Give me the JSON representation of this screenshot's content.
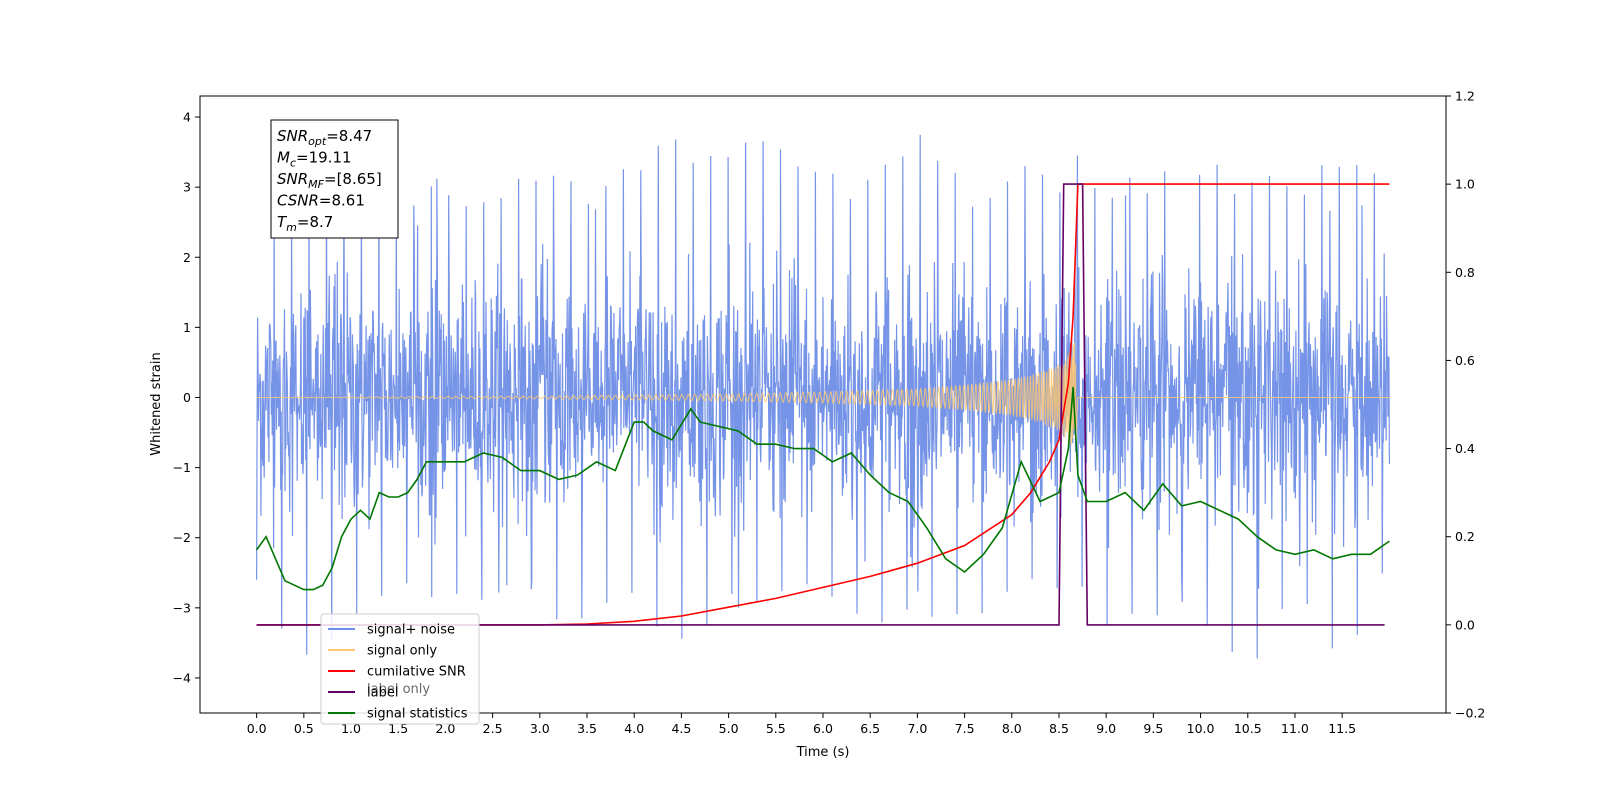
{
  "chart_data": {
    "type": "line",
    "xlabel": "Time (s)",
    "ylabel": "Whitened strain",
    "xlim": [
      -0.6,
      12.6
    ],
    "ylim": [
      -4.5,
      4.3
    ],
    "y2lim": [
      -0.2,
      1.2
    ],
    "xticks": [
      "0.0",
      "0.5",
      "1.0",
      "1.5",
      "2.0",
      "2.5",
      "3.0",
      "3.5",
      "4.0",
      "4.5",
      "5.0",
      "5.5",
      "6.0",
      "6.5",
      "7.0",
      "7.5",
      "8.0",
      "8.5",
      "9.0",
      "9.5",
      "10.0",
      "10.5",
      "11.0",
      "11.5"
    ],
    "yticks": [
      "4",
      "3",
      "2",
      "1",
      "0",
      "−1",
      "−2",
      "−3",
      "−4"
    ],
    "y2ticks": [
      "1.2",
      "1.0",
      "0.8",
      "0.6",
      "0.4",
      "0.2",
      "0.0",
      "−0.2"
    ],
    "annotation": {
      "lines": [
        {
          "sym": "SNR",
          "sub": "opt",
          "value": "=8.47"
        },
        {
          "sym": "M",
          "sub": "c",
          "value": "=19.11"
        },
        {
          "sym": "SNR",
          "sub": "MF",
          "value": "=[8.65]"
        },
        {
          "sym": "CSNR",
          "sub": "",
          "value": "=8.61"
        },
        {
          "sym": "T",
          "sub": "m",
          "value": "=8.7"
        }
      ]
    },
    "legend": {
      "placement": "lower-left",
      "entries": [
        {
          "label": "signal+ noise",
          "color": "#6f8ee6"
        },
        {
          "label": "signal only",
          "color": "#ffc870"
        },
        {
          "label": "cumilative SNR",
          "color": "#ff0000"
        },
        {
          "label": "label",
          "color": "#660066"
        },
        {
          "label": "signal statistics",
          "color": "#007700"
        }
      ],
      "hidden_text": "label only"
    },
    "series": [
      {
        "name": "signal+ noise",
        "axis": "left",
        "color": "#6f8ee6",
        "x_range": [
          0,
          12
        ],
        "envelope": {
          "x": [
            0.0,
            0.5,
            1.0,
            1.5,
            2.0,
            2.5,
            3.0,
            3.5,
            4.0,
            4.5,
            5.0,
            5.5,
            6.0,
            6.5,
            7.0,
            7.5,
            8.0,
            8.5,
            8.6,
            8.7,
            9.0,
            9.5,
            10.0,
            10.5,
            11.0,
            11.5,
            12.0
          ],
          "upper": [
            2.6,
            3.1,
            3.4,
            3.0,
            3.3,
            3.0,
            3.3,
            3.2,
            3.5,
            3.8,
            3.5,
            3.9,
            3.4,
            3.2,
            3.8,
            3.1,
            3.4,
            3.3,
            3.7,
            3.8,
            3.3,
            3.3,
            3.6,
            3.2,
            3.3,
            3.5,
            3.1
          ],
          "lower": [
            -2.6,
            -4.1,
            -3.2,
            -2.9,
            -3.0,
            -2.9,
            -3.1,
            -3.3,
            -3.2,
            -3.9,
            -3.0,
            -3.0,
            -3.1,
            -3.3,
            -3.2,
            -3.2,
            -3.0,
            -3.0,
            -3.4,
            -3.1,
            -3.3,
            -3.1,
            -3.3,
            -4.1,
            -3.0,
            -3.8,
            -2.8
          ]
        }
      },
      {
        "name": "signal only",
        "axis": "left",
        "color": "#ffc870",
        "x_range": [
          0,
          12
        ],
        "envelope": {
          "x": [
            0.0,
            3.0,
            5.0,
            6.0,
            7.0,
            7.5,
            8.0,
            8.3,
            8.5,
            8.6,
            8.67,
            8.7,
            12.0
          ],
          "amplitude": [
            0.0,
            0.02,
            0.05,
            0.08,
            0.12,
            0.18,
            0.26,
            0.36,
            0.48,
            0.62,
            0.8,
            0.0,
            0.0
          ]
        }
      },
      {
        "name": "cumilative SNR",
        "axis": "right",
        "color": "#ff0000",
        "x": [
          0.0,
          3.0,
          3.5,
          4.0,
          4.5,
          5.0,
          5.5,
          6.0,
          6.5,
          7.0,
          7.5,
          8.0,
          8.2,
          8.4,
          8.5,
          8.6,
          8.65,
          8.7,
          12.0
        ],
        "values": [
          0.0,
          0.0,
          0.002,
          0.008,
          0.02,
          0.04,
          0.06,
          0.085,
          0.11,
          0.14,
          0.18,
          0.25,
          0.3,
          0.37,
          0.42,
          0.55,
          0.7,
          1.0,
          1.0
        ]
      },
      {
        "name": "label",
        "axis": "right",
        "color": "#660066",
        "x": [
          0.0,
          8.5,
          8.55,
          8.75,
          8.8,
          11.95
        ],
        "values": [
          0.0,
          0.0,
          1.0,
          1.0,
          0.0,
          0.0
        ]
      },
      {
        "name": "signal statistics",
        "axis": "right",
        "color": "#007700",
        "x": [
          0.0,
          0.1,
          0.2,
          0.3,
          0.4,
          0.5,
          0.6,
          0.7,
          0.8,
          0.9,
          1.0,
          1.1,
          1.2,
          1.3,
          1.4,
          1.5,
          1.6,
          1.7,
          1.8,
          1.9,
          2.0,
          2.2,
          2.4,
          2.6,
          2.8,
          3.0,
          3.2,
          3.4,
          3.6,
          3.8,
          4.0,
          4.1,
          4.2,
          4.4,
          4.6,
          4.7,
          4.9,
          5.1,
          5.3,
          5.5,
          5.7,
          5.9,
          6.1,
          6.3,
          6.5,
          6.7,
          6.9,
          7.1,
          7.3,
          7.5,
          7.7,
          7.9,
          8.1,
          8.3,
          8.5,
          8.6,
          8.65,
          8.7,
          8.8,
          9.0,
          9.2,
          9.4,
          9.6,
          9.8,
          10.0,
          10.2,
          10.4,
          10.6,
          10.8,
          11.0,
          11.2,
          11.4,
          11.6,
          11.8,
          12.0
        ],
        "values": [
          0.17,
          0.2,
          0.15,
          0.1,
          0.09,
          0.08,
          0.08,
          0.09,
          0.13,
          0.2,
          0.24,
          0.26,
          0.24,
          0.3,
          0.29,
          0.29,
          0.3,
          0.33,
          0.37,
          0.37,
          0.37,
          0.37,
          0.39,
          0.38,
          0.35,
          0.35,
          0.33,
          0.34,
          0.37,
          0.35,
          0.46,
          0.46,
          0.44,
          0.42,
          0.49,
          0.46,
          0.45,
          0.44,
          0.41,
          0.41,
          0.4,
          0.4,
          0.37,
          0.39,
          0.34,
          0.3,
          0.28,
          0.22,
          0.15,
          0.12,
          0.16,
          0.22,
          0.37,
          0.28,
          0.3,
          0.4,
          0.54,
          0.34,
          0.28,
          0.28,
          0.3,
          0.26,
          0.32,
          0.27,
          0.28,
          0.26,
          0.24,
          0.2,
          0.17,
          0.16,
          0.17,
          0.15,
          0.16,
          0.16,
          0.19
        ]
      }
    ]
  }
}
